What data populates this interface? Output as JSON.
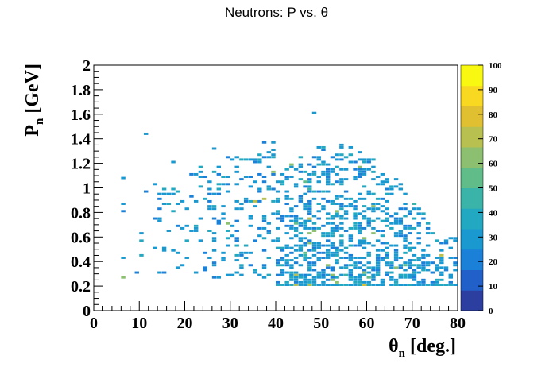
{
  "chart_data": {
    "type": "heatmap",
    "title": "Neutrons: P vs.  θ",
    "xlabel_main": "θ",
    "xlabel_sub": "n",
    "xlabel_unit": "[deg.]",
    "ylabel_main": "P",
    "ylabel_sub": "n",
    "ylabel_unit": "[GeV]",
    "xlim": [
      0,
      80
    ],
    "ylim": [
      0,
      2
    ],
    "x_ticks": [
      0,
      10,
      20,
      30,
      40,
      50,
      60,
      70,
      80
    ],
    "y_ticks": [
      0,
      0.2,
      0.4,
      0.6,
      0.8,
      1,
      1.2,
      1.4,
      1.6,
      1.8,
      2
    ],
    "x_tick_labels": [
      "0",
      "10",
      "20",
      "30",
      "40",
      "50",
      "60",
      "70",
      "80"
    ],
    "y_tick_labels": [
      "0",
      "0.2",
      "0.4",
      "0.6",
      "0.8",
      "1",
      "1.2",
      "1.4",
      "1.6",
      "1.8",
      "2"
    ],
    "colorbar": {
      "zlim": [
        0,
        100
      ],
      "ticks": [
        0,
        10,
        20,
        30,
        40,
        50,
        60,
        70,
        80,
        90,
        100
      ],
      "tick_labels": [
        "0",
        "10",
        "20",
        "30",
        "40",
        "50",
        "60",
        "70",
        "80",
        "90",
        "100"
      ],
      "colors": [
        "#2c3fa0",
        "#2160c8",
        "#1a80d8",
        "#1a98d0",
        "#22a8c0",
        "#3ab4a8",
        "#60bc88",
        "#8cc070",
        "#b8c050",
        "#e0c030",
        "#f8d820",
        "#f8f810"
      ]
    },
    "bins": {
      "x_bin_width": 1,
      "y_bin_width": 0.02,
      "dense_region": {
        "x": [
          40,
          80
        ],
        "y": [
          0.2,
          1.36
        ]
      },
      "sparse_region": {
        "x": [
          6,
          40
        ],
        "y": [
          0.26,
          1.44
        ]
      },
      "floor_y": 0.2,
      "outliers": [
        {
          "x": 48,
          "y": 1.6
        },
        {
          "x": 11,
          "y": 1.43
        },
        {
          "x": 26,
          "y": 1.31
        },
        {
          "x": 17,
          "y": 1.2
        },
        {
          "x": 6,
          "y": 1.07
        }
      ],
      "typical_count": 30,
      "max_count": 100
    },
    "grid": false,
    "legend": "none"
  }
}
